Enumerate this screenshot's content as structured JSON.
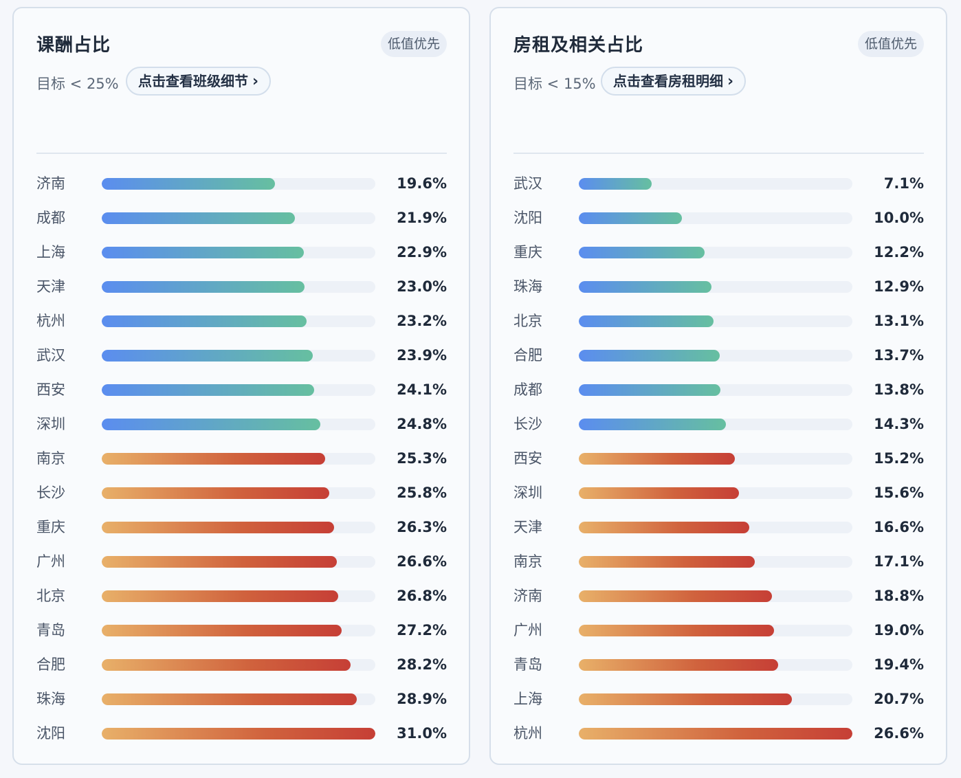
{
  "chart_data": [
    {
      "type": "bar",
      "title": "课酬占比",
      "badge": "低值优先",
      "target_text": "目标 < 25%",
      "target": 25,
      "detail_button": "点击查看班级细节",
      "categories": [
        "济南",
        "成都",
        "上海",
        "天津",
        "杭州",
        "武汉",
        "西安",
        "深圳",
        "南京",
        "长沙",
        "重庆",
        "广州",
        "北京",
        "青岛",
        "合肥",
        "珠海",
        "沈阳"
      ],
      "values": [
        19.6,
        21.9,
        22.9,
        23.0,
        23.2,
        23.9,
        24.1,
        24.8,
        25.3,
        25.8,
        26.3,
        26.6,
        26.8,
        27.2,
        28.2,
        28.9,
        31.0
      ],
      "value_labels": [
        "19.6%",
        "21.9%",
        "22.9%",
        "23.0%",
        "23.2%",
        "23.9%",
        "24.1%",
        "24.8%",
        "25.3%",
        "25.8%",
        "26.3%",
        "26.6%",
        "26.8%",
        "27.2%",
        "28.2%",
        "28.9%",
        "31.0%"
      ],
      "xlim": [
        0,
        31.0
      ],
      "colors": {
        "below_target": [
          "#5b8def",
          "#66bfa0"
        ],
        "above_target": [
          "#e8b069",
          "#c63f36"
        ],
        "track": "#edf1f7"
      }
    },
    {
      "type": "bar",
      "title": "房租及相关占比",
      "badge": "低值优先",
      "target_text": "目标 < 15%",
      "target": 15,
      "detail_button": "点击查看房租明细",
      "categories": [
        "武汉",
        "沈阳",
        "重庆",
        "珠海",
        "北京",
        "合肥",
        "成都",
        "长沙",
        "西安",
        "深圳",
        "天津",
        "南京",
        "济南",
        "广州",
        "青岛",
        "上海",
        "杭州"
      ],
      "values": [
        7.1,
        10.0,
        12.2,
        12.9,
        13.1,
        13.7,
        13.8,
        14.3,
        15.2,
        15.6,
        16.6,
        17.1,
        18.8,
        19.0,
        19.4,
        20.7,
        26.6
      ],
      "value_labels": [
        "7.1%",
        "10.0%",
        "12.2%",
        "12.9%",
        "13.1%",
        "13.7%",
        "13.8%",
        "14.3%",
        "15.2%",
        "15.6%",
        "16.6%",
        "17.1%",
        "18.8%",
        "19.0%",
        "19.4%",
        "20.7%",
        "26.6%"
      ],
      "xlim": [
        0,
        26.6
      ],
      "colors": {
        "below_target": [
          "#5b8def",
          "#66bfa0"
        ],
        "above_target": [
          "#e8b069",
          "#c63f36"
        ],
        "track": "#edf1f7"
      }
    }
  ],
  "chevron": "›"
}
